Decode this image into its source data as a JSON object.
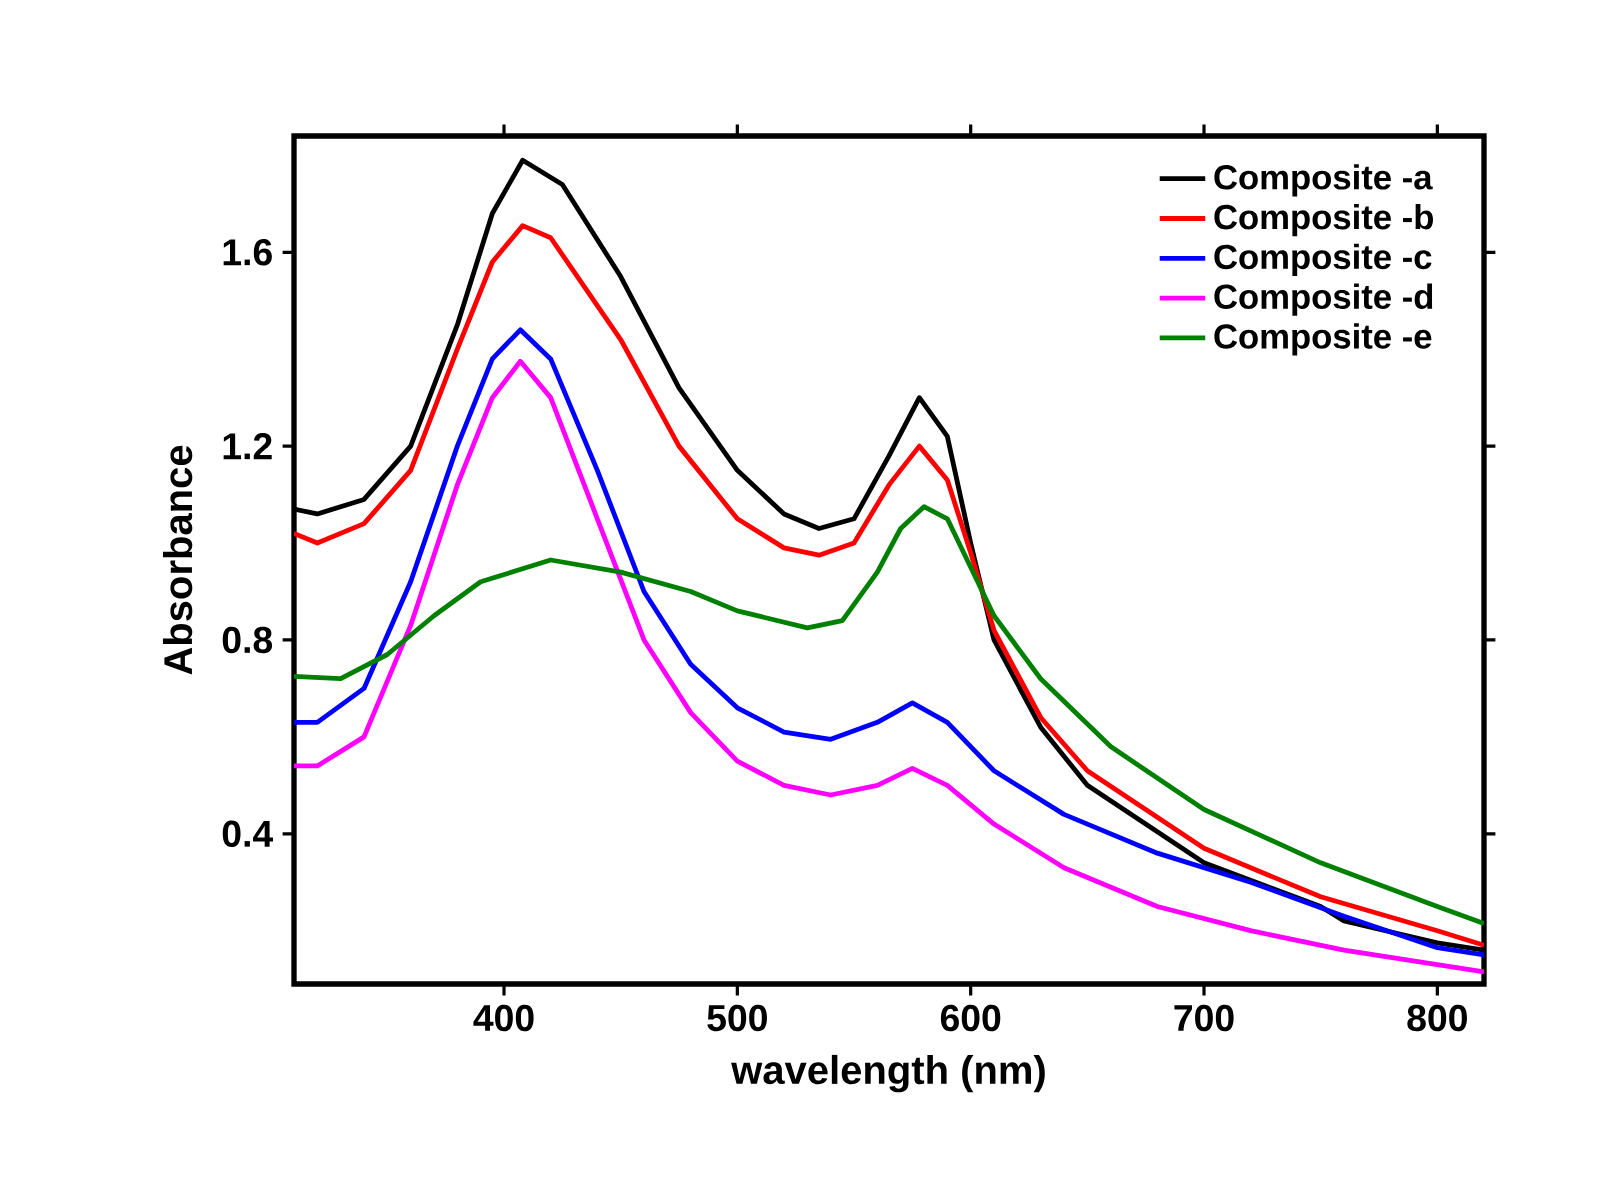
{
  "chart_data": {
    "type": "line",
    "xlabel": "wavelength (nm)",
    "ylabel": "Absorbance",
    "xlim": [
      310,
      820
    ],
    "ylim": [
      0.09,
      1.84
    ],
    "xticks": [
      400,
      500,
      600,
      700,
      800
    ],
    "yticks": [
      0.4,
      0.8,
      1.2,
      1.6
    ],
    "legend": "top right",
    "series": [
      {
        "name": "Composite -a",
        "color": "#000000",
        "x": [
          310,
          320,
          340,
          360,
          380,
          395,
          408,
          425,
          450,
          475,
          500,
          520,
          535,
          550,
          565,
          578,
          590,
          600,
          610,
          630,
          650,
          700,
          750,
          760,
          800,
          820
        ],
        "values": [
          1.07,
          1.06,
          1.09,
          1.2,
          1.45,
          1.68,
          1.79,
          1.74,
          1.55,
          1.32,
          1.15,
          1.06,
          1.03,
          1.05,
          1.18,
          1.3,
          1.22,
          1.0,
          0.8,
          0.62,
          0.5,
          0.34,
          0.25,
          0.22,
          0.175,
          0.16
        ]
      },
      {
        "name": "Composite -b",
        "color": "#ff0000",
        "x": [
          310,
          320,
          340,
          360,
          380,
          395,
          408,
          420,
          450,
          475,
          500,
          520,
          535,
          550,
          565,
          578,
          590,
          600,
          610,
          630,
          650,
          700,
          750,
          800,
          820
        ],
        "values": [
          1.02,
          1.0,
          1.04,
          1.15,
          1.4,
          1.58,
          1.655,
          1.63,
          1.42,
          1.2,
          1.05,
          0.99,
          0.975,
          1.0,
          1.12,
          1.2,
          1.13,
          0.98,
          0.82,
          0.64,
          0.53,
          0.37,
          0.27,
          0.2,
          0.17
        ]
      },
      {
        "name": "Composite -c",
        "color": "#0000ff",
        "x": [
          310,
          320,
          340,
          360,
          380,
          395,
          407,
          420,
          440,
          460,
          480,
          500,
          520,
          540,
          560,
          575,
          590,
          610,
          640,
          680,
          720,
          760,
          800,
          820
        ],
        "values": [
          0.63,
          0.63,
          0.7,
          0.92,
          1.2,
          1.38,
          1.44,
          1.38,
          1.15,
          0.9,
          0.75,
          0.66,
          0.61,
          0.595,
          0.63,
          0.67,
          0.63,
          0.53,
          0.44,
          0.36,
          0.3,
          0.23,
          0.165,
          0.15
        ]
      },
      {
        "name": "Composite -d",
        "color": "#ff00ff",
        "x": [
          310,
          320,
          340,
          360,
          380,
          395,
          407,
          420,
          440,
          460,
          480,
          500,
          520,
          540,
          560,
          575,
          590,
          610,
          640,
          680,
          720,
          760,
          800,
          820
        ],
        "values": [
          0.54,
          0.54,
          0.6,
          0.83,
          1.12,
          1.3,
          1.375,
          1.3,
          1.05,
          0.8,
          0.65,
          0.55,
          0.5,
          0.48,
          0.5,
          0.535,
          0.5,
          0.42,
          0.33,
          0.25,
          0.2,
          0.16,
          0.13,
          0.115
        ]
      },
      {
        "name": "Composite -e",
        "color": "#008000",
        "x": [
          310,
          330,
          350,
          370,
          390,
          420,
          450,
          480,
          500,
          530,
          545,
          560,
          570,
          580,
          590,
          600,
          610,
          630,
          660,
          700,
          750,
          800,
          820
        ],
        "values": [
          0.725,
          0.72,
          0.77,
          0.85,
          0.92,
          0.965,
          0.94,
          0.9,
          0.86,
          0.825,
          0.84,
          0.94,
          1.03,
          1.075,
          1.05,
          0.95,
          0.85,
          0.72,
          0.58,
          0.45,
          0.34,
          0.25,
          0.215
        ]
      }
    ]
  }
}
